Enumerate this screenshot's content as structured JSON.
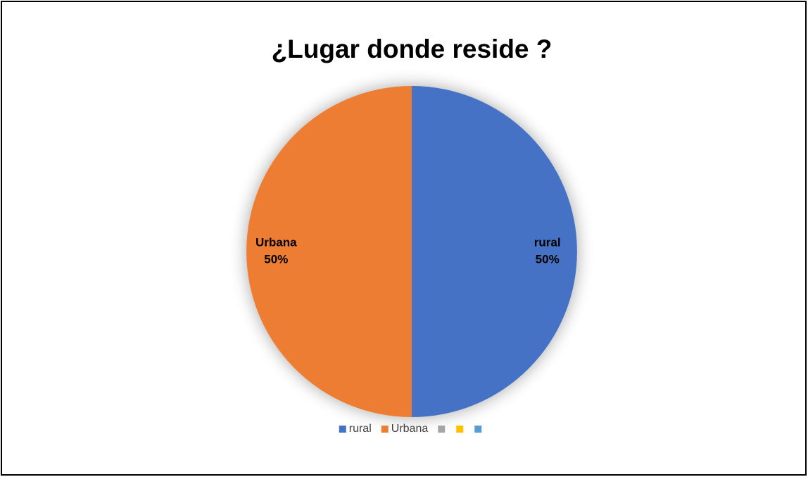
{
  "chart_data": {
    "type": "pie",
    "title": "¿Lugar donde reside ?",
    "categories": [
      "rural",
      "Urbana",
      null,
      null,
      null
    ],
    "values": [
      50,
      50,
      0,
      0,
      0
    ],
    "value_labels": [
      "50%",
      "50%",
      null,
      null,
      null
    ],
    "colors": [
      "#4472c4",
      "#ed7d31",
      "#a5a5a5",
      "#ffc000",
      "#5b9bd5"
    ],
    "legend": "bottom"
  }
}
